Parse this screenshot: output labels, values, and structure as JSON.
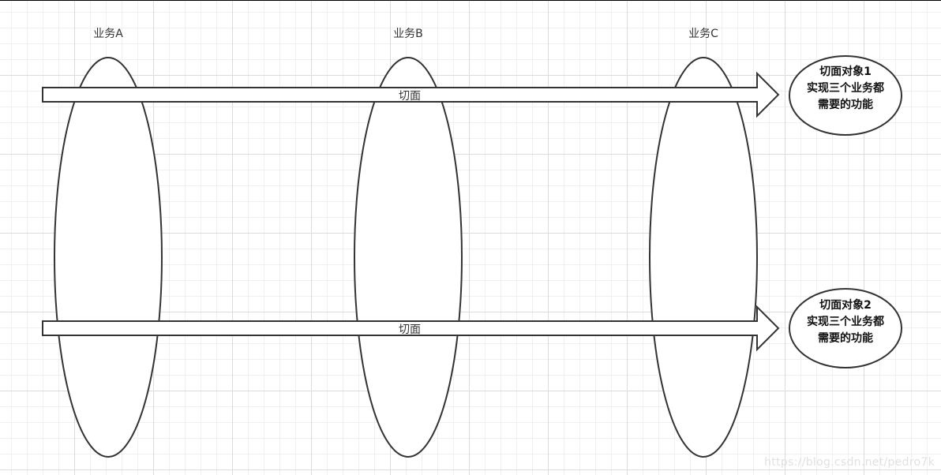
{
  "business": [
    {
      "label": "业务A"
    },
    {
      "label": "业务B"
    },
    {
      "label": "业务C"
    }
  ],
  "aspects": [
    {
      "arrow_label": "切面",
      "object_lines": [
        "切面对象1",
        "实现三个业务都",
        "需要的功能"
      ]
    },
    {
      "arrow_label": "切面",
      "object_lines": [
        "切面对象2",
        "实现三个业务都",
        "需要的功能"
      ]
    }
  ],
  "watermark": "https://blog.csdn.net/pedro7k"
}
